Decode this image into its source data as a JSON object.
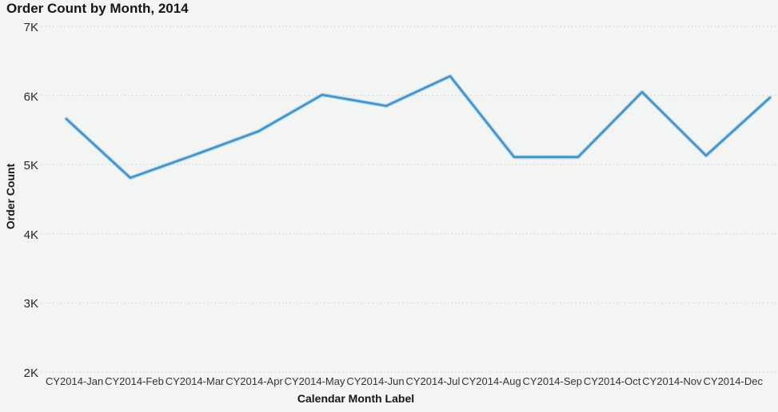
{
  "chart_data": {
    "type": "line",
    "title": "Order Count by Month, 2014",
    "xlabel": "Calendar Month Label",
    "ylabel": "Order Count",
    "categories": [
      "CY2014-Jan",
      "CY2014-Feb",
      "CY2014-Mar",
      "CY2014-Apr",
      "CY2014-May",
      "CY2014-Jun",
      "CY2014-Jul",
      "CY2014-Aug",
      "CY2014-Sep",
      "CY2014-Oct",
      "CY2014-Nov",
      "CY2014-Dec"
    ],
    "series": [
      {
        "name": "Order Count",
        "values": [
          5660,
          4810,
          5140,
          5480,
          6010,
          5850,
          6280,
          5110,
          5110,
          6050,
          5130,
          5970
        ]
      }
    ],
    "ylim": [
      2000,
      7000
    ],
    "yticks": [
      2000,
      3000,
      4000,
      5000,
      6000,
      7000
    ],
    "ytick_labels": [
      "2K",
      "3K",
      "4K",
      "5K",
      "6K",
      "7K"
    ],
    "legend": "none",
    "grid": "horizontal-dotted",
    "line_color": "#3e95d0",
    "background_color": "#f3f5f2",
    "gridline_color": "#d6d8d4"
  }
}
